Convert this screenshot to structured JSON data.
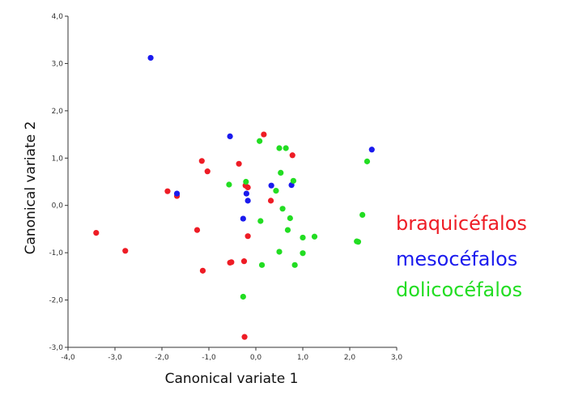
{
  "chart_data": {
    "type": "scatter",
    "xlabel": "Canonical variate 1",
    "ylabel": "Canonical variate 2",
    "xlim": [
      -4.0,
      3.0
    ],
    "ylim": [
      -3.0,
      4.0
    ],
    "x_ticks": [
      -4.0,
      -3.0,
      -2.0,
      -1.0,
      0.0,
      1.0,
      2.0,
      3.0
    ],
    "y_ticks": [
      -3.0,
      -2.0,
      -1.0,
      0.0,
      1.0,
      2.0,
      3.0,
      4.0
    ],
    "x_tick_labels": [
      "-4,0",
      "-3,0",
      "-2,0",
      "-1,0",
      "0,0",
      "1,0",
      "2,0",
      "3,0"
    ],
    "y_tick_labels": [
      "-3,0",
      "-2,0",
      "-1,0",
      "0,0",
      "1,0",
      "2,0",
      "3,0",
      "4,0"
    ],
    "grid": false,
    "legend_position": "right",
    "series": [
      {
        "name": "braquicéfalos",
        "color": "#ee1c25",
        "points": [
          [
            -3.4,
            -0.58
          ],
          [
            -2.78,
            -0.96
          ],
          [
            -1.88,
            0.3
          ],
          [
            -1.68,
            0.2
          ],
          [
            -1.25,
            -0.52
          ],
          [
            -1.15,
            0.94
          ],
          [
            -1.03,
            0.72
          ],
          [
            -1.13,
            -1.38
          ],
          [
            -0.55,
            -1.21
          ],
          [
            -0.52,
            -1.2
          ],
          [
            -0.36,
            0.88
          ],
          [
            -0.25,
            -1.18
          ],
          [
            -0.22,
            0.42
          ],
          [
            -0.17,
            0.38
          ],
          [
            -0.17,
            -0.65
          ],
          [
            0.17,
            1.5
          ],
          [
            0.32,
            0.1
          ],
          [
            0.78,
            1.06
          ],
          [
            -0.24,
            -2.78
          ]
        ]
      },
      {
        "name": "mesocéfalos",
        "color": "#1a1aee",
        "points": [
          [
            -2.24,
            3.12
          ],
          [
            -1.68,
            0.25
          ],
          [
            -0.55,
            1.46
          ],
          [
            -0.27,
            -0.28
          ],
          [
            -0.2,
            0.25
          ],
          [
            -0.17,
            0.1
          ],
          [
            0.33,
            0.42
          ],
          [
            0.76,
            0.43
          ],
          [
            2.47,
            1.18
          ]
        ]
      },
      {
        "name": "dolicocéfalos",
        "color": "#22dd22",
        "points": [
          [
            0.08,
            1.36
          ],
          [
            0.5,
            1.21
          ],
          [
            0.64,
            1.21
          ],
          [
            -0.57,
            0.44
          ],
          [
            -0.21,
            0.5
          ],
          [
            0.53,
            0.69
          ],
          [
            0.43,
            0.31
          ],
          [
            0.8,
            0.52
          ],
          [
            2.37,
            0.93
          ],
          [
            0.57,
            -0.07
          ],
          [
            0.1,
            -0.33
          ],
          [
            0.73,
            -0.27
          ],
          [
            2.27,
            -0.2
          ],
          [
            0.68,
            -0.52
          ],
          [
            1.0,
            -0.68
          ],
          [
            1.25,
            -0.66
          ],
          [
            2.15,
            -0.76
          ],
          [
            2.18,
            -0.77
          ],
          [
            0.5,
            -0.98
          ],
          [
            1.0,
            -1.01
          ],
          [
            0.13,
            -1.26
          ],
          [
            0.83,
            -1.26
          ],
          [
            -0.27,
            -1.93
          ]
        ]
      }
    ]
  }
}
